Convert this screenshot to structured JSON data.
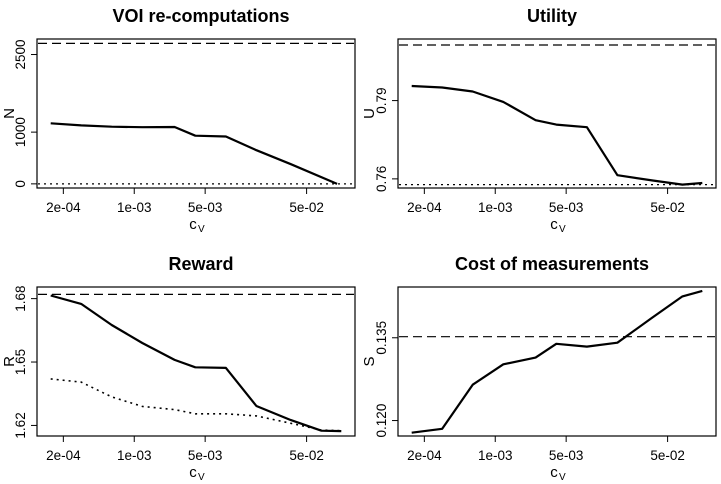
{
  "chart_data": [
    {
      "id": "voi",
      "type": "line",
      "title": "VOI re-computations",
      "xlabel": "c",
      "xlabel_sub": "V",
      "ylabel": "N",
      "xscale": "log",
      "xlim": [
        0.00011,
        0.15
      ],
      "ylim": [
        -80,
        2800
      ],
      "xticks": [
        {
          "value": 0.0002,
          "label": "2e-04"
        },
        {
          "value": 0.001,
          "label": "1e-03"
        },
        {
          "value": 0.005,
          "label": "5e-03"
        },
        {
          "value": 0.05,
          "label": "5e-02"
        }
      ],
      "yticks": [
        {
          "value": 0,
          "label": "0"
        },
        {
          "value": 1000,
          "label": "1000"
        },
        {
          "value": 2500,
          "label": "2500"
        }
      ],
      "x": [
        0.00015,
        0.0003,
        0.0006,
        0.0012,
        0.0025,
        0.004,
        0.008,
        0.016,
        0.035,
        0.1
      ],
      "series": [
        {
          "style": "solid",
          "values": [
            1170,
            1130,
            1105,
            1095,
            1100,
            930,
            915,
            650,
            380,
            0
          ]
        }
      ],
      "hlines": [
        {
          "style": "dashed",
          "value": 2715
        },
        {
          "style": "dotted",
          "value": 0
        }
      ]
    },
    {
      "id": "utility",
      "type": "line",
      "title": "Utility",
      "xlabel": "c",
      "xlabel_sub": "V",
      "ylabel": "U",
      "xscale": "log",
      "xlim": [
        0.00011,
        0.15
      ],
      "ylim": [
        0.7565,
        0.8136
      ],
      "xticks": [
        {
          "value": 0.0002,
          "label": "2e-04"
        },
        {
          "value": 0.001,
          "label": "1e-03"
        },
        {
          "value": 0.005,
          "label": "5e-03"
        },
        {
          "value": 0.05,
          "label": "5e-02"
        }
      ],
      "yticks": [
        {
          "value": 0.76,
          "label": "0.76"
        },
        {
          "value": 0.79,
          "label": "0.79"
        }
      ],
      "x": [
        0.00015,
        0.0003,
        0.0006,
        0.0012,
        0.0025,
        0.004,
        0.008,
        0.016,
        0.035,
        0.07,
        0.11
      ],
      "series": [
        {
          "style": "solid",
          "values": [
            0.7956,
            0.795,
            0.7935,
            0.7895,
            0.7825,
            0.7808,
            0.7798,
            0.7614,
            0.7594,
            0.7578,
            0.7584
          ]
        }
      ],
      "hlines": [
        {
          "style": "dashed",
          "value": 0.8113
        },
        {
          "style": "dotted",
          "value": 0.7578
        }
      ]
    },
    {
      "id": "reward",
      "type": "line",
      "title": "Reward",
      "xlabel": "c",
      "xlabel_sub": "V",
      "ylabel": "R",
      "xscale": "log",
      "xlim": [
        0.00011,
        0.15
      ],
      "ylim": [
        1.615,
        1.6855
      ],
      "xticks": [
        {
          "value": 0.0002,
          "label": "2e-04"
        },
        {
          "value": 0.001,
          "label": "1e-03"
        },
        {
          "value": 0.005,
          "label": "5e-03"
        },
        {
          "value": 0.05,
          "label": "5e-02"
        }
      ],
      "yticks": [
        {
          "value": 1.62,
          "label": "1.62"
        },
        {
          "value": 1.65,
          "label": "1.65"
        },
        {
          "value": 1.68,
          "label": "1.68"
        }
      ],
      "x": [
        0.00015,
        0.0003,
        0.0006,
        0.0012,
        0.0025,
        0.004,
        0.008,
        0.016,
        0.035,
        0.07,
        0.11
      ],
      "series": [
        {
          "style": "solid",
          "values": [
            1.6815,
            1.6775,
            1.6675,
            1.659,
            1.651,
            1.6475,
            1.6472,
            1.6292,
            1.6225,
            1.6175,
            1.6173
          ]
        },
        {
          "style": "dotted",
          "values": [
            1.642,
            1.6405,
            1.6335,
            1.629,
            1.6275,
            1.6255,
            1.6255,
            1.6245,
            1.621,
            1.6178,
            1.6175
          ]
        }
      ],
      "hlines": [
        {
          "style": "dashed",
          "value": 1.682
        }
      ]
    },
    {
      "id": "cost",
      "type": "line",
      "title": "Cost of measurements",
      "xlabel": "c",
      "xlabel_sub": "V",
      "ylabel": "S",
      "xscale": "log",
      "xlim": [
        0.00011,
        0.15
      ],
      "ylim": [
        0.1172,
        0.1442
      ],
      "xticks": [
        {
          "value": 0.0002,
          "label": "2e-04"
        },
        {
          "value": 0.001,
          "label": "1e-03"
        },
        {
          "value": 0.005,
          "label": "5e-03"
        },
        {
          "value": 0.05,
          "label": "5e-02"
        }
      ],
      "yticks": [
        {
          "value": 0.12,
          "label": "0.120"
        },
        {
          "value": 0.135,
          "label": "0.135"
        }
      ],
      "x": [
        0.00015,
        0.0003,
        0.0006,
        0.0012,
        0.0025,
        0.004,
        0.008,
        0.016,
        0.035,
        0.07,
        0.11
      ],
      "series": [
        {
          "style": "solid",
          "values": [
            0.1178,
            0.1185,
            0.1265,
            0.1302,
            0.1314,
            0.1339,
            0.1334,
            0.1341,
            0.1386,
            0.1425,
            0.1435
          ]
        }
      ],
      "hlines": [
        {
          "style": "dashed",
          "value": 0.1352
        }
      ]
    }
  ]
}
